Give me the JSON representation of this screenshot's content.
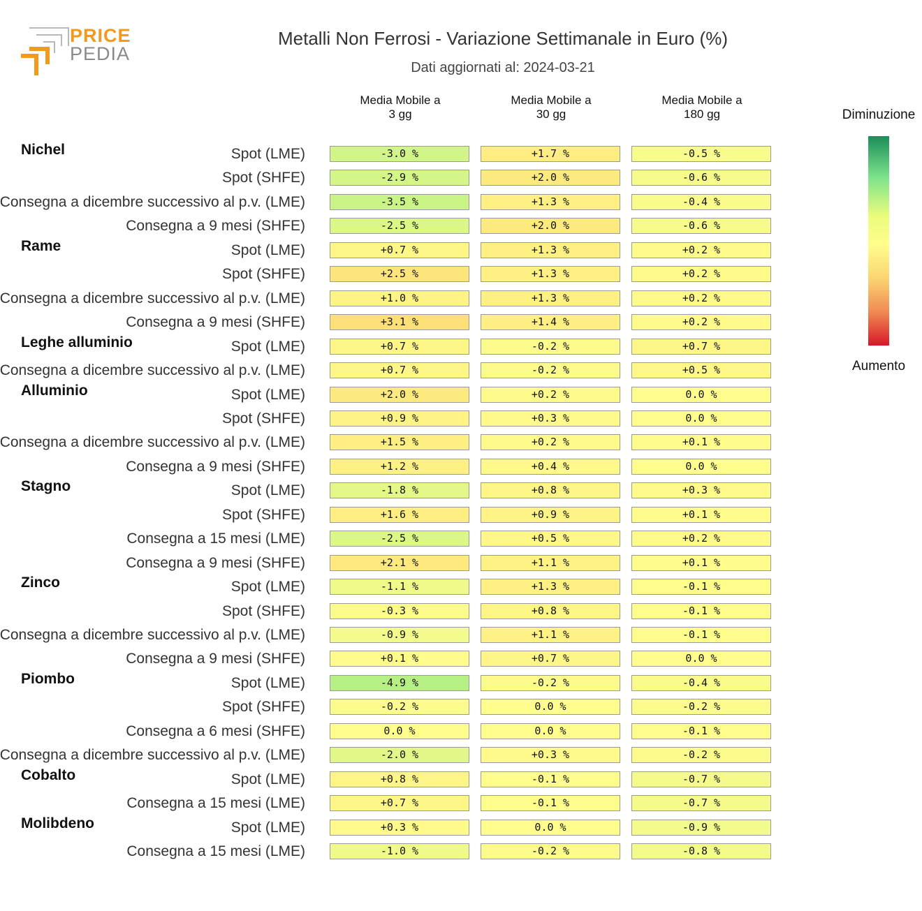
{
  "logo": {
    "price": "PRICE",
    "pedia": "PEDIA"
  },
  "chart_data": {
    "type": "heatmap",
    "title": "Metalli Non Ferrosi - Variazione Settimanale in Euro (%)",
    "subtitle": "Dati aggiornati al: 2024-03-21",
    "columns": [
      "Media Mobile a 3 gg",
      "Media Mobile a 30 gg",
      "Media Mobile a 180 gg"
    ],
    "columns_lines": [
      [
        "Media Mobile a",
        "3 gg"
      ],
      [
        "Media Mobile a",
        "30 gg"
      ],
      [
        "Media Mobile a",
        "180 gg"
      ]
    ],
    "legend": {
      "top": "Diminuzione",
      "bottom": "Aumento"
    },
    "unit": "%",
    "colors": {
      "low": "#d7172a",
      "mid": "#fffd8c",
      "high": "#1a8f5a"
    },
    "groups": [
      {
        "name": "Nichel",
        "rows": [
          {
            "label": "Spot (LME)",
            "values": [
              -3.0,
              1.7,
              -0.5
            ]
          },
          {
            "label": "Spot (SHFE)",
            "values": [
              -2.9,
              2.0,
              -0.6
            ]
          },
          {
            "label": "Consegna a dicembre successivo al p.v. (LME)",
            "values": [
              -3.5,
              1.3,
              -0.4
            ]
          },
          {
            "label": "Consegna a 9 mesi (SHFE)",
            "values": [
              -2.5,
              2.0,
              -0.6
            ]
          }
        ]
      },
      {
        "name": "Rame",
        "rows": [
          {
            "label": "Spot (LME)",
            "values": [
              0.7,
              1.3,
              0.2
            ]
          },
          {
            "label": "Spot (SHFE)",
            "values": [
              2.5,
              1.3,
              0.2
            ]
          },
          {
            "label": "Consegna a dicembre successivo al p.v. (LME)",
            "values": [
              1.0,
              1.3,
              0.2
            ]
          },
          {
            "label": "Consegna a 9 mesi (SHFE)",
            "values": [
              3.1,
              1.4,
              0.2
            ]
          }
        ]
      },
      {
        "name": "Leghe alluminio",
        "rows": [
          {
            "label": "Spot (LME)",
            "values": [
              0.7,
              -0.2,
              0.7
            ]
          },
          {
            "label": "Consegna a dicembre successivo al p.v. (LME)",
            "values": [
              0.7,
              -0.2,
              0.5
            ]
          }
        ]
      },
      {
        "name": "Alluminio",
        "rows": [
          {
            "label": "Spot (LME)",
            "values": [
              2.0,
              0.2,
              0.0
            ]
          },
          {
            "label": "Spot (SHFE)",
            "values": [
              0.9,
              0.3,
              0.0
            ]
          },
          {
            "label": "Consegna a dicembre successivo al p.v. (LME)",
            "values": [
              1.5,
              0.2,
              0.1
            ]
          },
          {
            "label": "Consegna a 9 mesi (SHFE)",
            "values": [
              1.2,
              0.4,
              0.0
            ]
          }
        ]
      },
      {
        "name": "Stagno",
        "rows": [
          {
            "label": "Spot (LME)",
            "values": [
              -1.8,
              0.8,
              0.3
            ]
          },
          {
            "label": "Spot (SHFE)",
            "values": [
              1.6,
              0.9,
              0.1
            ]
          },
          {
            "label": "Consegna a 15 mesi (LME)",
            "values": [
              -2.5,
              0.5,
              0.2
            ]
          },
          {
            "label": "Consegna a 9 mesi (SHFE)",
            "values": [
              2.1,
              1.1,
              0.1
            ]
          }
        ]
      },
      {
        "name": "Zinco",
        "rows": [
          {
            "label": "Spot (LME)",
            "values": [
              -1.1,
              1.3,
              -0.1
            ]
          },
          {
            "label": "Spot (SHFE)",
            "values": [
              -0.3,
              0.8,
              -0.1
            ]
          },
          {
            "label": "Consegna a dicembre successivo al p.v. (LME)",
            "values": [
              -0.9,
              1.1,
              -0.1
            ]
          },
          {
            "label": "Consegna a 9 mesi (SHFE)",
            "values": [
              0.1,
              0.7,
              0.0
            ]
          }
        ]
      },
      {
        "name": "Piombo",
        "rows": [
          {
            "label": "Spot (LME)",
            "values": [
              -4.9,
              -0.2,
              -0.4
            ]
          },
          {
            "label": "Spot (SHFE)",
            "values": [
              -0.2,
              0.0,
              -0.2
            ]
          },
          {
            "label": "Consegna a 6 mesi (SHFE)",
            "values": [
              0.0,
              0.0,
              -0.1
            ]
          },
          {
            "label": "Consegna a dicembre successivo al p.v. (LME)",
            "values": [
              -2.0,
              0.3,
              -0.2
            ]
          }
        ]
      },
      {
        "name": "Cobalto",
        "rows": [
          {
            "label": "Spot (LME)",
            "values": [
              0.8,
              -0.1,
              -0.7
            ]
          },
          {
            "label": "Consegna a 15 mesi (LME)",
            "values": [
              0.7,
              -0.1,
              -0.7
            ]
          }
        ]
      },
      {
        "name": "Molibdeno",
        "rows": [
          {
            "label": "Spot (LME)",
            "values": [
              0.3,
              0.0,
              -0.9
            ]
          },
          {
            "label": "Consegna a 15 mesi (LME)",
            "values": [
              -1.0,
              -0.2,
              -0.8
            ]
          }
        ]
      }
    ]
  }
}
